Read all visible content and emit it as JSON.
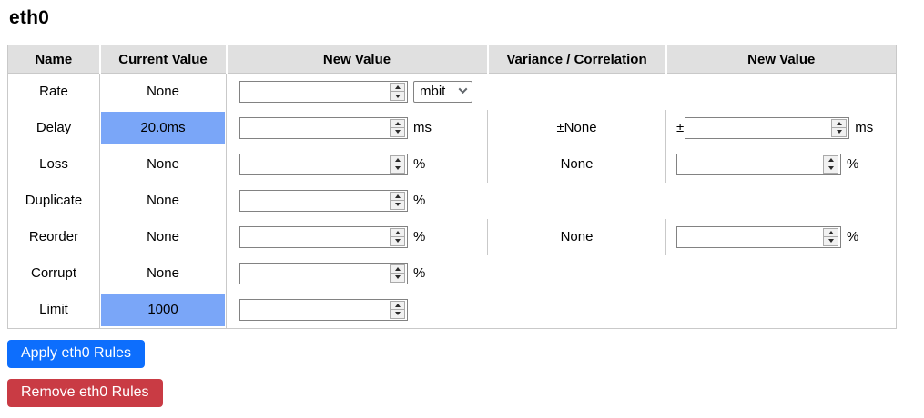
{
  "title": "eth0",
  "colors": {
    "header-bg": "#e0e0e0",
    "table-border": "#c9c9c9",
    "highlight-blue": "#7aa6f8",
    "apply-blue": "#0d6efd",
    "remove-red": "#c93b44"
  },
  "table": {
    "headers": {
      "name": "Name",
      "current": "Current Value",
      "new_value": "New Value",
      "variance": "Variance / Correlation",
      "new_value2": "New Value"
    },
    "rows": [
      {
        "name": "Rate",
        "current": "None",
        "unit": "mbit"
      },
      {
        "name": "Delay",
        "current": "20.0ms",
        "suffix": "ms",
        "variance": "±None",
        "prefix2": "±",
        "suffix2": "ms"
      },
      {
        "name": "Loss",
        "current": "None",
        "suffix": "%",
        "variance": "None",
        "suffix2": "%"
      },
      {
        "name": "Duplicate",
        "current": "None",
        "suffix": "%"
      },
      {
        "name": "Reorder",
        "current": "None",
        "suffix": "%",
        "variance": "None",
        "suffix2": "%"
      },
      {
        "name": "Corrupt",
        "current": "None",
        "suffix": "%"
      },
      {
        "name": "Limit",
        "current": "1000"
      }
    ]
  },
  "buttons": {
    "apply": "Apply eth0 Rules",
    "remove": "Remove eth0 Rules"
  }
}
